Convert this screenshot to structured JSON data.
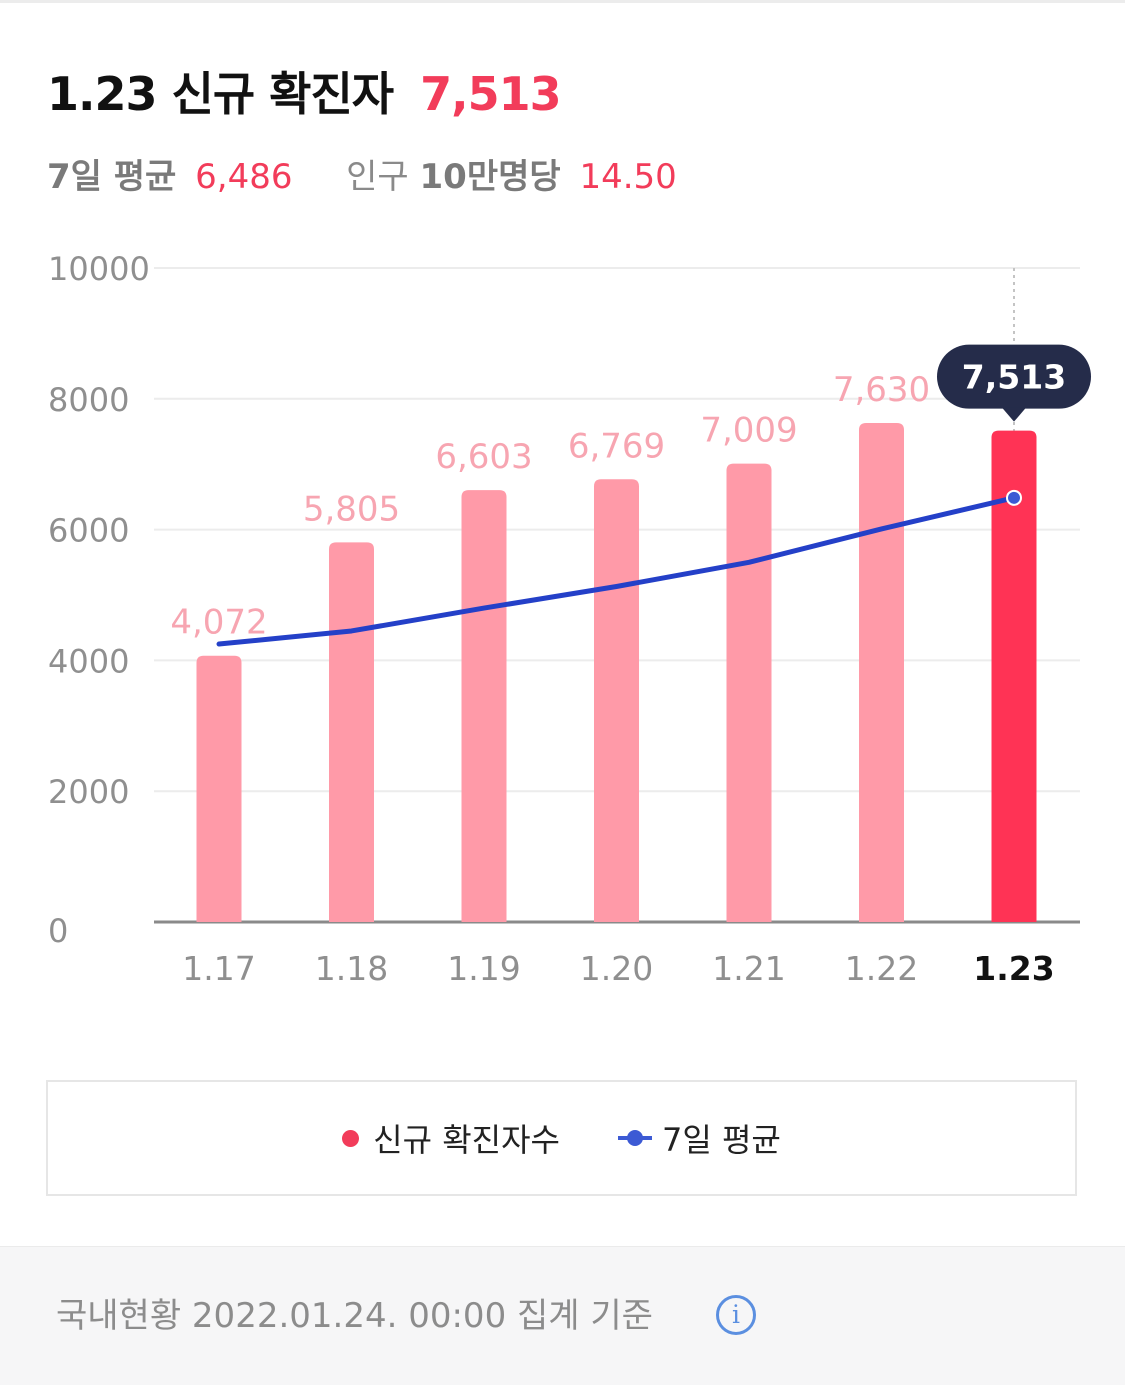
{
  "header": {
    "date": "1.23",
    "title": "신규 확진자",
    "count": "7,513",
    "avg_label": "7일 평균",
    "avg_value": "6,486",
    "per_label_prefix": "인구 ",
    "per_label_bold": "10만명당",
    "per_value": "14.50"
  },
  "colors": {
    "accent": "#f23c5a",
    "bar": "#ff9aa8",
    "bar_highlight": "#ff3355",
    "line": "#2440c8",
    "tooltip": "#252c4a"
  },
  "chart_data": {
    "type": "bar",
    "categories": [
      "1.17",
      "1.18",
      "1.19",
      "1.20",
      "1.21",
      "1.22",
      "1.23"
    ],
    "series": [
      {
        "name": "신규 확진자수",
        "type": "bar",
        "values": [
          4072,
          5805,
          6603,
          6769,
          7009,
          7630,
          7513
        ]
      },
      {
        "name": "7일 평균",
        "type": "line",
        "values": [
          4250,
          4450,
          4800,
          5130,
          5500,
          6010,
          6486
        ]
      }
    ],
    "data_labels": [
      "4,072",
      "5,805",
      "6,603",
      "6,769",
      "7,009",
      "7,630",
      "7,513"
    ],
    "y_ticks": [
      "0",
      "2000",
      "4000",
      "6000",
      "8000",
      "10000"
    ],
    "ylim": [
      0,
      10000
    ],
    "highlight_index": 6,
    "tooltip": "7,513",
    "grid": true
  },
  "legend": {
    "bar_label": "신규 확진자수",
    "line_label": "7일 평균"
  },
  "footer": {
    "text": "국내현황 2022.01.24. 00:00 집계 기준",
    "info_icon": "info-icon"
  }
}
